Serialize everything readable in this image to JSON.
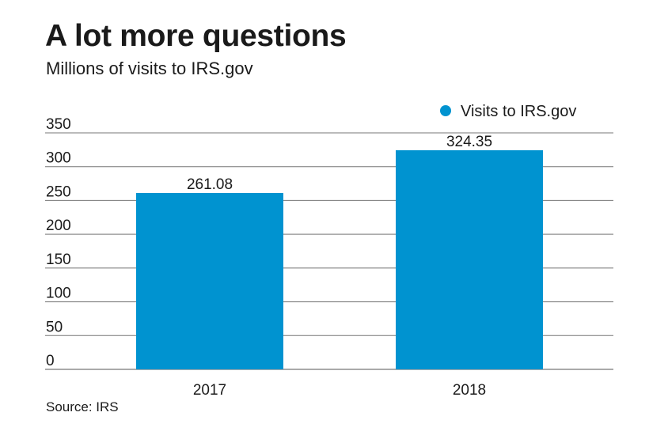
{
  "title": "A lot more questions",
  "subtitle": "Millions of visits to IRS.gov",
  "source": "Source: IRS",
  "chart_data": {
    "type": "bar",
    "categories": [
      "2017",
      "2018"
    ],
    "series": [
      {
        "name": "Visits to IRS.gov",
        "values": [
          261.08,
          324.35
        ],
        "color": "#0093d0"
      }
    ],
    "data_labels": [
      "261.08",
      "324.35"
    ],
    "yticks": [
      0,
      50,
      100,
      150,
      200,
      250,
      300,
      350
    ],
    "ylim": [
      0,
      350
    ],
    "grid": true,
    "legend_position": "top-right",
    "xlabel": "",
    "ylabel": ""
  }
}
